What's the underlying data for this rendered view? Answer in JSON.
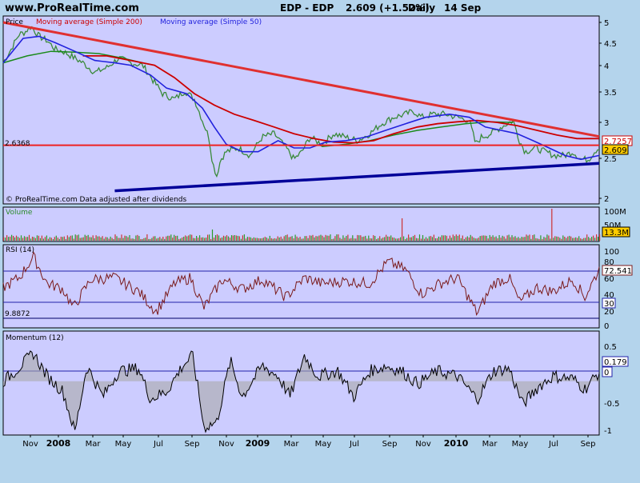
{
  "header": {
    "site": "www.ProRealTime.com",
    "instrument": "EDP - EDP",
    "quote": "2.609 (+1.52%)",
    "period": "Daily",
    "date": "14 Sep"
  },
  "colors": {
    "background": "#b4d4ec",
    "panel": "#ccccff",
    "price": "#3a8a3a",
    "ma200": "#cc0000",
    "ma50": "#2222dd",
    "trend_upper": "#e03030",
    "trend_lower": "#000099",
    "rsi": "#7a1a1a",
    "momentum_fill": "#a8a8a8",
    "volume": "#cc3333"
  },
  "chart_data": [
    {
      "type": "line",
      "panel": "price",
      "title": "Price",
      "series_labels": [
        "Moving average (Simple 200)",
        "Moving average (Simple 50)"
      ],
      "note": "© ProRealTime.com  Data adjusted after dividends",
      "y_ticks": [
        "5",
        "4.5",
        "4",
        "3.5",
        "3",
        "2.5",
        "2"
      ],
      "ylim": [
        2,
        5
      ],
      "log_scale": true,
      "x_ticks": [
        "Nov",
        "2008",
        "Mar",
        "May",
        "Jul",
        "Sep",
        "Nov",
        "2009",
        "Mar",
        "May",
        "Jul",
        "Sep",
        "Nov",
        "2010",
        "Mar",
        "May",
        "Jul",
        "Sep"
      ],
      "horizontal_line": {
        "label": "2.6368",
        "value": 2.6368
      },
      "last_value_tags": [
        "2.7257",
        "2.609"
      ],
      "price": [
        [
          0,
          4.05
        ],
        [
          10,
          4.35
        ],
        [
          20,
          4.7
        ],
        [
          27,
          4.75
        ],
        [
          35,
          4.9
        ],
        [
          45,
          4.65
        ],
        [
          55,
          4.55
        ],
        [
          65,
          4.35
        ],
        [
          75,
          4.3
        ],
        [
          85,
          4.2
        ],
        [
          100,
          4.05
        ],
        [
          115,
          3.85
        ],
        [
          130,
          3.95
        ],
        [
          145,
          4.15
        ],
        [
          160,
          4.05
        ],
        [
          175,
          4.0
        ],
        [
          188,
          3.7
        ],
        [
          200,
          3.45
        ],
        [
          215,
          3.35
        ],
        [
          228,
          3.5
        ],
        [
          240,
          3.35
        ],
        [
          250,
          3.0
        ],
        [
          258,
          2.75
        ],
        [
          263,
          2.4
        ],
        [
          268,
          2.25
        ],
        [
          273,
          2.45
        ],
        [
          280,
          2.55
        ],
        [
          295,
          2.6
        ],
        [
          310,
          2.5
        ],
        [
          325,
          2.75
        ],
        [
          340,
          2.8
        ],
        [
          355,
          2.6
        ],
        [
          365,
          2.45
        ],
        [
          375,
          2.55
        ],
        [
          385,
          2.75
        ],
        [
          400,
          2.65
        ],
        [
          415,
          2.8
        ],
        [
          430,
          2.75
        ],
        [
          445,
          2.7
        ],
        [
          460,
          2.8
        ],
        [
          475,
          2.95
        ],
        [
          490,
          3.05
        ],
        [
          505,
          3.1
        ],
        [
          515,
          3.15
        ],
        [
          525,
          3.05
        ],
        [
          540,
          3.1
        ],
        [
          555,
          3.1
        ],
        [
          570,
          3.05
        ],
        [
          585,
          3.0
        ],
        [
          593,
          2.65
        ],
        [
          600,
          2.75
        ],
        [
          612,
          2.8
        ],
        [
          625,
          2.9
        ],
        [
          640,
          3.0
        ],
        [
          648,
          2.7
        ],
        [
          655,
          2.55
        ],
        [
          668,
          2.6
        ],
        [
          680,
          2.55
        ],
        [
          692,
          2.5
        ],
        [
          705,
          2.5
        ],
        [
          715,
          2.55
        ],
        [
          725,
          2.45
        ],
        [
          735,
          2.45
        ],
        [
          742,
          2.55
        ],
        [
          748,
          2.61
        ]
      ],
      "ma200": [
        [
          100,
          4.2
        ],
        [
          130,
          4.2
        ],
        [
          160,
          4.1
        ],
        [
          190,
          4.0
        ],
        [
          215,
          3.75
        ],
        [
          240,
          3.45
        ],
        [
          265,
          3.25
        ],
        [
          290,
          3.1
        ],
        [
          315,
          3.0
        ],
        [
          340,
          2.9
        ],
        [
          365,
          2.8
        ],
        [
          390,
          2.73
        ],
        [
          415,
          2.68
        ],
        [
          440,
          2.67
        ],
        [
          465,
          2.7
        ],
        [
          490,
          2.8
        ],
        [
          520,
          2.9
        ],
        [
          545,
          2.95
        ],
        [
          570,
          2.98
        ],
        [
          595,
          3.0
        ],
        [
          620,
          2.97
        ],
        [
          645,
          2.92
        ],
        [
          670,
          2.85
        ],
        [
          695,
          2.78
        ],
        [
          720,
          2.73
        ],
        [
          748,
          2.73
        ]
      ],
      "ma50": [
        [
          0,
          4.05
        ],
        [
          25,
          4.6
        ],
        [
          45,
          4.65
        ],
        [
          65,
          4.5
        ],
        [
          90,
          4.3
        ],
        [
          115,
          4.1
        ],
        [
          140,
          4.05
        ],
        [
          160,
          4.0
        ],
        [
          185,
          3.8
        ],
        [
          205,
          3.55
        ],
        [
          230,
          3.45
        ],
        [
          250,
          3.2
        ],
        [
          265,
          2.9
        ],
        [
          280,
          2.65
        ],
        [
          300,
          2.55
        ],
        [
          320,
          2.55
        ],
        [
          345,
          2.7
        ],
        [
          365,
          2.6
        ],
        [
          385,
          2.6
        ],
        [
          405,
          2.68
        ],
        [
          430,
          2.7
        ],
        [
          455,
          2.75
        ],
        [
          480,
          2.85
        ],
        [
          505,
          2.95
        ],
        [
          530,
          3.05
        ],
        [
          560,
          3.1
        ],
        [
          585,
          3.05
        ],
        [
          605,
          2.9
        ],
        [
          625,
          2.85
        ],
        [
          645,
          2.8
        ],
        [
          665,
          2.7
        ],
        [
          685,
          2.6
        ],
        [
          705,
          2.5
        ],
        [
          725,
          2.45
        ],
        [
          748,
          2.5
        ]
      ],
      "ma_green": [
        [
          0,
          4.05
        ],
        [
          30,
          4.2
        ],
        [
          60,
          4.3
        ],
        [
          90,
          4.28
        ],
        [
          120,
          4.25
        ],
        [
          150,
          4.15
        ],
        [
          175,
          4.05
        ]
      ],
      "trend_upper": [
        [
          0,
          5.0
        ],
        [
          748,
          2.76
        ]
      ],
      "trend_lower": [
        [
          140,
          2.08
        ],
        [
          748,
          2.4
        ]
      ]
    },
    {
      "type": "bar",
      "panel": "volume",
      "title": "Volume",
      "y_ticks": [
        "100M",
        "50M"
      ],
      "last_value_tag": "13.3M"
    },
    {
      "type": "line",
      "panel": "rsi",
      "title": "RSI (14)",
      "y_ticks": [
        "100",
        "80",
        "60",
        "40",
        "20",
        "0"
      ],
      "ylim": [
        0,
        100
      ],
      "bands": [
        70,
        30
      ],
      "min_label": "9.8872",
      "min_value": 9.8872,
      "last_value_tags": [
        "72.541",
        "30"
      ]
    },
    {
      "type": "area",
      "panel": "momentum",
      "title": "Momentum (12)",
      "y_ticks": [
        "0.5",
        "0",
        "-0.5",
        "-1"
      ],
      "ylim": [
        -1.05,
        0.95
      ],
      "last_value_tags": [
        "0.179",
        "0"
      ]
    }
  ]
}
